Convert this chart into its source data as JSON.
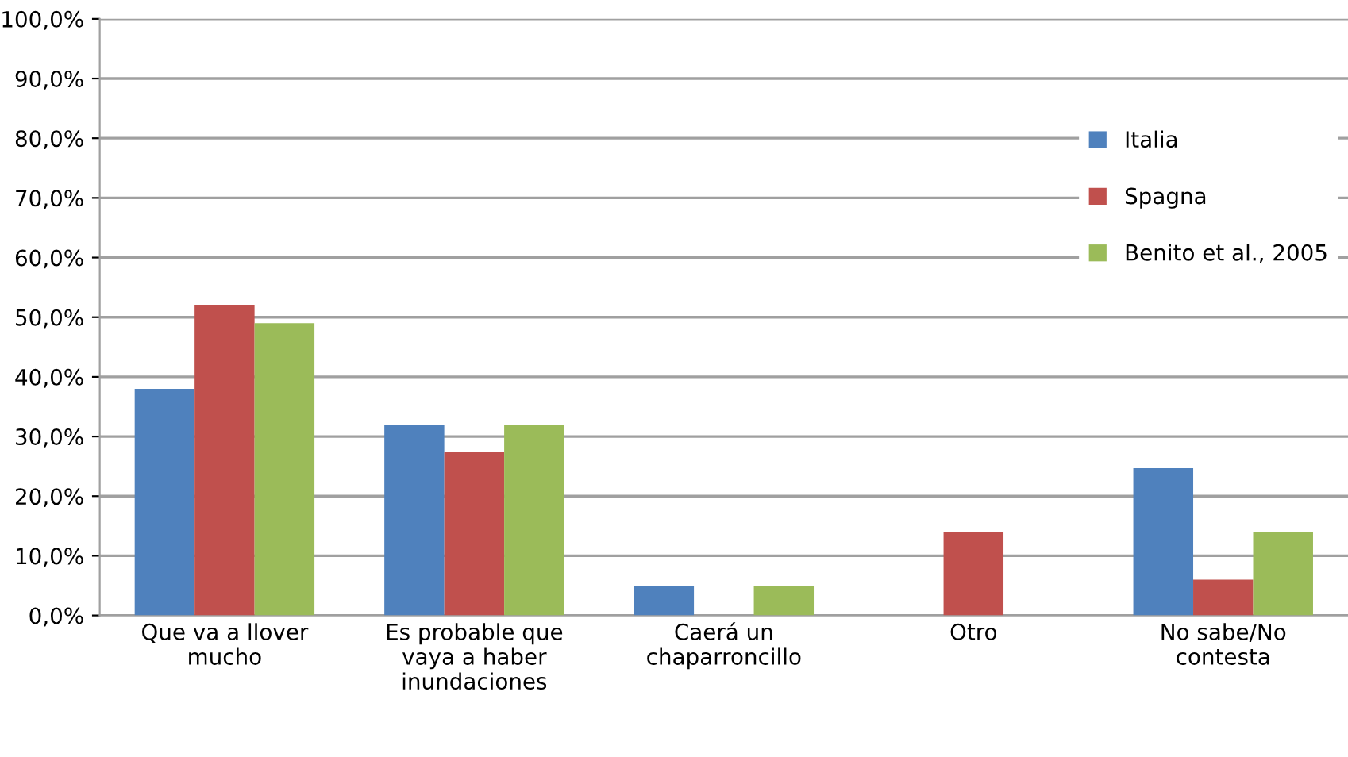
{
  "chart_data": {
    "type": "bar",
    "categories": [
      "Que va a llover\nmucho",
      "Es probable que\nvaya a haber\ninundaciones",
      "Caerá un\nchaparroncillo",
      "Otro",
      "No sabe/No\ncontesta"
    ],
    "series": [
      {
        "name": "Italia",
        "color": "#4f81bd",
        "values": [
          38,
          32,
          5,
          0,
          24.7
        ]
      },
      {
        "name": "Spagna",
        "color": "#c0504d",
        "values": [
          52,
          27.4,
          0,
          14,
          6
        ]
      },
      {
        "name": "Benito et al., 2005",
        "color": "#9bbb59",
        "values": [
          49,
          32,
          5,
          0,
          14
        ]
      }
    ],
    "ylim": [
      0,
      100
    ],
    "yticks": [
      {
        "value": 0,
        "label": "0,0%"
      },
      {
        "value": 10,
        "label": "10,0%"
      },
      {
        "value": 20,
        "label": "20,0%"
      },
      {
        "value": 30,
        "label": "30,0%"
      },
      {
        "value": 40,
        "label": "40,0%"
      },
      {
        "value": 50,
        "label": "50,0%"
      },
      {
        "value": 60,
        "label": "60,0%"
      },
      {
        "value": 70,
        "label": "70,0%"
      },
      {
        "value": 80,
        "label": "80,0%"
      },
      {
        "value": 90,
        "label": "90,0%"
      },
      {
        "value": 100,
        "label": "100,0%"
      }
    ],
    "grid": "y",
    "legend": "right"
  }
}
